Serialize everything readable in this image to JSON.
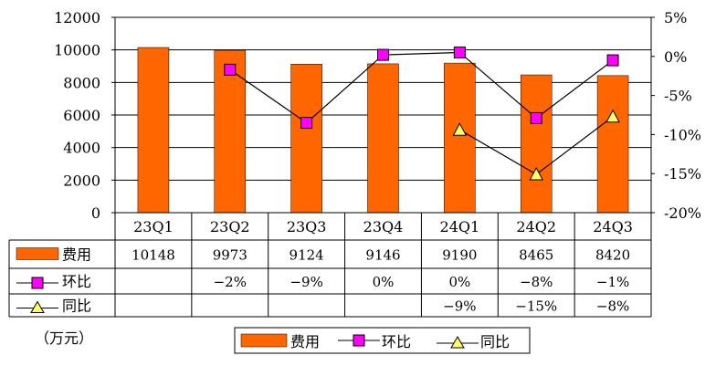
{
  "chart_data": {
    "type": "bar",
    "categories": [
      "23Q1",
      "23Q2",
      "23Q3",
      "23Q4",
      "24Q1",
      "24Q2",
      "24Q3"
    ],
    "ylim": [
      0,
      12000
    ],
    "yticks": [
      0,
      2000,
      4000,
      6000,
      8000,
      10000,
      12000
    ],
    "y2lim": [
      -20,
      5
    ],
    "y2ticks": [
      "5%",
      "0%",
      "-5%",
      "-10%",
      "-15%",
      "-20%"
    ],
    "y2tick_values": [
      5,
      0,
      -5,
      -10,
      -15,
      -20
    ],
    "unit": "（万元）",
    "grid": true,
    "legend_position": "bottom",
    "colors": {
      "bar": "#FF6600",
      "qoq_marker": "#FF00FF",
      "yoy_marker": "#FFFF66",
      "line": "#000000"
    },
    "series": [
      {
        "name": "费用",
        "type": "bar",
        "axis": "left",
        "values": [
          10148,
          9973,
          9124,
          9146,
          9190,
          8465,
          8420
        ],
        "labels": [
          "10148",
          "9973",
          "9124",
          "9146",
          "9190",
          "8465",
          "8420"
        ]
      },
      {
        "name": "环比",
        "type": "line",
        "axis": "right",
        "marker": "square",
        "values": [
          null,
          -1.7,
          -8.5,
          0.2,
          0.5,
          -7.9,
          -0.5
        ],
        "labels": [
          "",
          "−2%",
          "−9%",
          "0%",
          "0%",
          "−8%",
          "−1%"
        ]
      },
      {
        "name": "同比",
        "type": "line",
        "axis": "right",
        "marker": "triangle",
        "values": [
          null,
          null,
          null,
          null,
          -9.4,
          -15.1,
          -7.7
        ],
        "labels": [
          "",
          "",
          "",
          "",
          "−9%",
          "−15%",
          "−8%"
        ]
      }
    ]
  }
}
